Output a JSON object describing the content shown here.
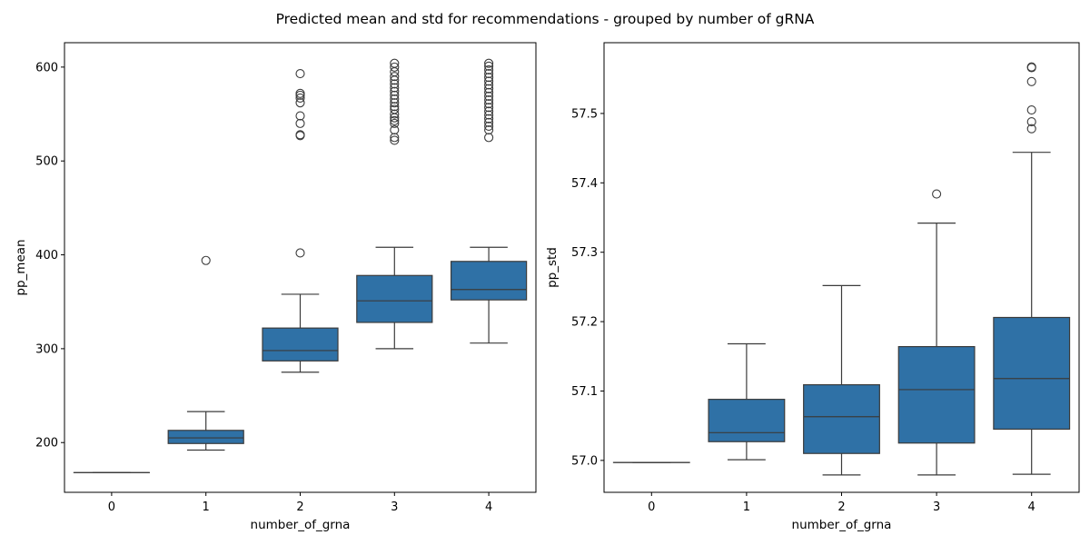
{
  "figure": {
    "suptitle": "Predicted mean and std for recommendations - grouped by number of gRNA",
    "box_color": "#2f71a6",
    "line_color": "#3b3b3b"
  },
  "chart_data": [
    {
      "type": "box",
      "xlabel": "number_of_grna",
      "ylabel": "pp_mean",
      "categories": [
        "0",
        "1",
        "2",
        "3",
        "4"
      ],
      "ylim": [
        147,
        626
      ],
      "yticks": [
        200,
        300,
        400,
        500,
        600
      ],
      "ytick_labels": [
        "200",
        "300",
        "400",
        "500",
        "600"
      ],
      "grid": false,
      "boxes": [
        {
          "category": "0",
          "whisker_low": 168,
          "q1": 168,
          "median": 168,
          "q3": 168,
          "whisker_high": 168,
          "outliers": []
        },
        {
          "category": "1",
          "whisker_low": 192,
          "q1": 199,
          "median": 205,
          "q3": 213,
          "whisker_high": 233,
          "outliers": [
            394
          ]
        },
        {
          "category": "2",
          "whisker_low": 275,
          "q1": 287,
          "median": 298,
          "q3": 322,
          "whisker_high": 358,
          "outliers": [
            402,
            527,
            528,
            540,
            548,
            562,
            567,
            570,
            572,
            593
          ]
        },
        {
          "category": "3",
          "whisker_low": 300,
          "q1": 328,
          "median": 351,
          "q3": 378,
          "whisker_high": 408,
          "outliers": [
            522,
            525,
            533,
            540,
            543,
            546,
            550,
            555,
            558,
            562,
            566,
            570,
            574,
            578,
            582,
            586,
            590,
            595,
            600,
            604
          ]
        },
        {
          "category": "4",
          "whisker_low": 306,
          "q1": 352,
          "median": 363,
          "q3": 393,
          "whisker_high": 408,
          "outliers": [
            525,
            533,
            537,
            541,
            545,
            549,
            553,
            557,
            561,
            565,
            569,
            573,
            577,
            581,
            585,
            589,
            593,
            597,
            601,
            604
          ]
        }
      ]
    },
    {
      "type": "box",
      "xlabel": "number_of_grna",
      "ylabel": "pp_std",
      "categories": [
        "0",
        "1",
        "2",
        "3",
        "4"
      ],
      "ylim": [
        56.954,
        57.602
      ],
      "yticks": [
        57.0,
        57.1,
        57.2,
        57.3,
        57.4,
        57.5
      ],
      "ytick_labels": [
        "57.0",
        "57.1",
        "57.2",
        "57.3",
        "57.4",
        "57.5"
      ],
      "grid": false,
      "boxes": [
        {
          "category": "0",
          "whisker_low": 56.997,
          "q1": 56.997,
          "median": 56.997,
          "q3": 56.997,
          "whisker_high": 56.997,
          "outliers": []
        },
        {
          "category": "1",
          "whisker_low": 57.001,
          "q1": 57.027,
          "median": 57.04,
          "q3": 57.088,
          "whisker_high": 57.168,
          "outliers": []
        },
        {
          "category": "2",
          "whisker_low": 56.979,
          "q1": 57.01,
          "median": 57.063,
          "q3": 57.109,
          "whisker_high": 57.252,
          "outliers": []
        },
        {
          "category": "3",
          "whisker_low": 56.979,
          "q1": 57.025,
          "median": 57.102,
          "q3": 57.164,
          "whisker_high": 57.342,
          "outliers": [
            57.384
          ]
        },
        {
          "category": "4",
          "whisker_low": 56.98,
          "q1": 57.045,
          "median": 57.118,
          "q3": 57.206,
          "whisker_high": 57.444,
          "outliers": [
            57.478,
            57.488,
            57.505,
            57.546,
            57.566,
            57.567
          ]
        }
      ]
    }
  ]
}
